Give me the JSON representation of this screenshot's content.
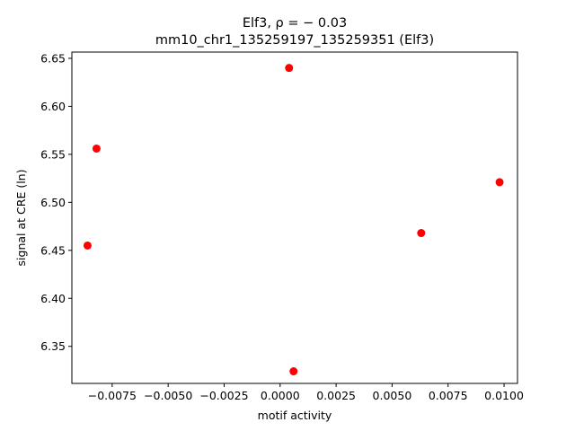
{
  "chart_data": {
    "type": "scatter",
    "title_line1": "Elf3, ρ = − 0.03",
    "title_line2": "mm10_chr1_135259197_135259351 (Elf3)",
    "xlabel": "motif activity",
    "ylabel": "signal at CRE (ln)",
    "xlim": [
      -0.0093,
      0.0106
    ],
    "ylim": [
      6.3114,
      6.6565
    ],
    "xticks": [
      -0.0075,
      -0.005,
      -0.0025,
      0.0,
      0.0025,
      0.005,
      0.0075,
      0.01
    ],
    "xtick_labels": [
      "−0.0075",
      "−0.0050",
      "−0.0025",
      "0.0000",
      "0.0025",
      "0.0050",
      "0.0075",
      "0.0100"
    ],
    "yticks": [
      6.35,
      6.4,
      6.45,
      6.5,
      6.55,
      6.6,
      6.65
    ],
    "ytick_labels": [
      "6.35",
      "6.40",
      "6.45",
      "6.50",
      "6.55",
      "6.60",
      "6.65"
    ],
    "grid": false,
    "marker_color": "#ff0000",
    "points": [
      {
        "x": -0.0086,
        "y": 6.455
      },
      {
        "x": -0.0082,
        "y": 6.556
      },
      {
        "x": 0.0004,
        "y": 6.64
      },
      {
        "x": 0.0006,
        "y": 6.324
      },
      {
        "x": 0.0063,
        "y": 6.468
      },
      {
        "x": 0.0098,
        "y": 6.521
      }
    ]
  }
}
